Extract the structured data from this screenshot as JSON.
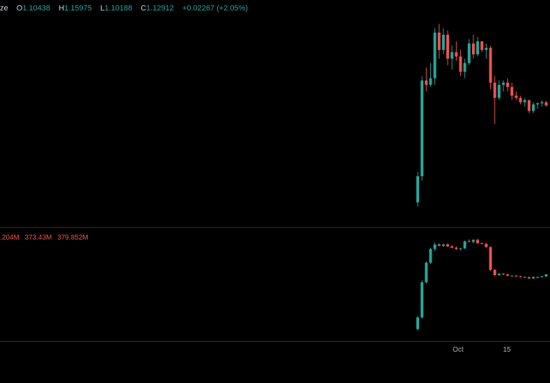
{
  "legend": {
    "name_tail": "ze",
    "open_label": "O",
    "open_value": "1.10438",
    "high_label": "H",
    "high_value": "1.15975",
    "low_label": "L",
    "low_value": "1.10188",
    "close_label": "C",
    "close_value": "1.12912",
    "change": "+0.02267 (+2.05%)"
  },
  "indicator_legend": {
    "values": [
      ".204M",
      "373.43M",
      "379.852M"
    ]
  },
  "time_axis": {
    "labels": [
      "Oct",
      "15"
    ]
  },
  "colors": {
    "up": "#26a69a",
    "down": "#ef5350",
    "background": "#000000",
    "divider": "#2a2e39",
    "axis_text": "#b2b5be"
  },
  "chart_data": [
    {
      "type": "candlestick",
      "series": [
        {
          "name": "",
          "ohlc": [
            [
              0.48,
              0.62,
              0.46,
              0.6
            ],
            [
              0.6,
              1.06,
              0.58,
              1.04
            ],
            [
              1.04,
              1.1,
              0.99,
              1.02
            ],
            [
              1.02,
              1.12,
              1.01,
              1.05
            ],
            [
              1.05,
              1.28,
              1.02,
              1.26
            ],
            [
              1.26,
              1.3,
              1.14,
              1.18
            ],
            [
              1.18,
              1.28,
              1.16,
              1.25
            ],
            [
              1.25,
              1.27,
              1.11,
              1.14
            ],
            [
              1.14,
              1.2,
              1.09,
              1.17
            ],
            [
              1.17,
              1.22,
              1.13,
              1.15
            ],
            [
              1.15,
              1.18,
              1.06,
              1.08
            ],
            [
              1.08,
              1.14,
              1.05,
              1.12
            ],
            [
              1.12,
              1.23,
              1.11,
              1.21
            ],
            [
              1.21,
              1.25,
              1.14,
              1.16
            ],
            [
              1.16,
              1.24,
              1.15,
              1.22
            ],
            [
              1.22,
              1.22,
              1.17,
              1.18
            ],
            [
              1.18,
              1.21,
              1.14,
              1.19
            ],
            [
              1.19,
              1.2,
              1.0,
              1.03
            ],
            [
              1.03,
              1.06,
              0.84,
              0.96
            ],
            [
              0.96,
              1.04,
              0.95,
              1.02
            ],
            [
              1.02,
              1.04,
              0.99,
              1.03
            ],
            [
              1.03,
              1.05,
              0.99,
              1.01
            ],
            [
              1.01,
              1.03,
              0.95,
              0.97
            ],
            [
              0.97,
              0.99,
              0.95,
              0.96
            ],
            [
              0.96,
              0.97,
              0.93,
              0.94
            ],
            [
              0.94,
              0.96,
              0.92,
              0.95
            ],
            [
              0.95,
              0.95,
              0.89,
              0.9
            ],
            [
              0.9,
              0.94,
              0.89,
              0.93
            ],
            [
              0.93,
              0.94,
              0.91,
              0.935
            ],
            [
              0.935,
              0.95,
              0.92,
              0.94
            ],
            [
              0.94,
              0.945,
              0.92,
              0.925
            ]
          ]
        }
      ]
    },
    {
      "type": "candlestick",
      "series": [
        {
          "name": "",
          "ohlc": [
            [
              140,
              160,
              138,
              158
            ],
            [
              158,
              215,
              156,
              212
            ],
            [
              212,
              244,
              210,
              242
            ],
            [
              242,
              265,
              240,
              263
            ],
            [
              263,
              273,
              260,
              270
            ],
            [
              270,
              272,
              267,
              268
            ],
            [
              268,
              271,
              266,
              270
            ],
            [
              270,
              272,
              266,
              267
            ],
            [
              267,
              269,
              264,
              265
            ],
            [
              265,
              267,
              262,
              263
            ],
            [
              263,
              265,
              261,
              264
            ],
            [
              264,
              276,
              263,
              275
            ],
            [
              275,
              278,
              273,
              274
            ],
            [
              274,
              278,
              272,
              277
            ],
            [
              277,
              279,
              271,
              272
            ],
            [
              272,
              273,
              270,
              271
            ],
            [
              271,
              272,
              265,
              266
            ],
            [
              266,
              267,
              229,
              231
            ],
            [
              231,
              232,
              221,
              223
            ],
            [
              223,
              226,
              222,
              225
            ],
            [
              225,
              226,
              223,
              224
            ],
            [
              224,
              225,
              221,
              222
            ],
            [
              222,
              223,
              221,
              222
            ],
            [
              222,
              223,
              220,
              221
            ],
            [
              221,
              222,
              219,
              220
            ],
            [
              220,
              221,
              219,
              220
            ],
            [
              220,
              220,
              217,
              218
            ],
            [
              218,
              221,
              217,
              220
            ],
            [
              220,
              221,
              218,
              220
            ],
            [
              220,
              222,
              219,
              221
            ],
            [
              221,
              225,
              220,
              224
            ]
          ]
        }
      ]
    }
  ]
}
